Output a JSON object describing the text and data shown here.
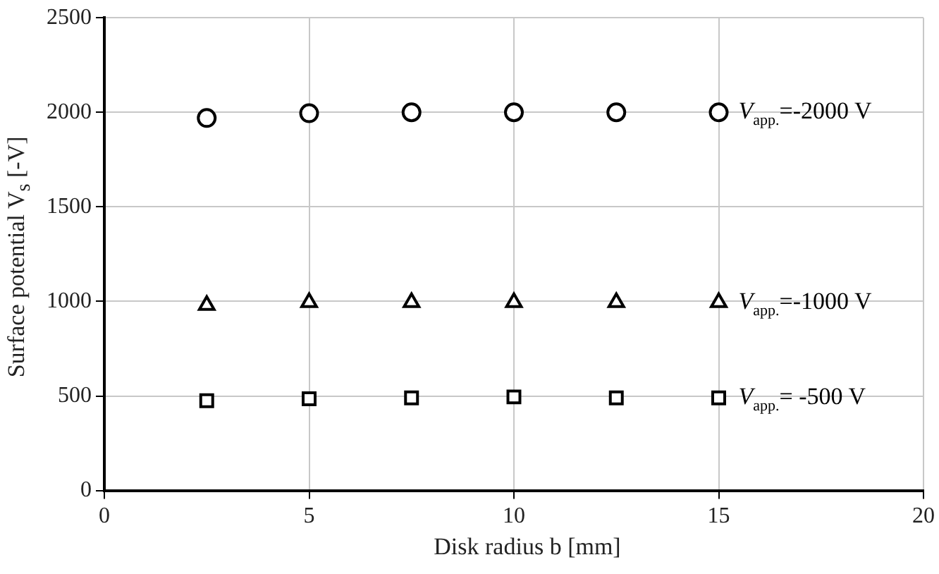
{
  "chart_data": {
    "type": "scatter",
    "xlabel": "Disk radius b [mm]",
    "ylabel": "Surface potential V$_{s}$ [-V]",
    "x": [
      2.5,
      5,
      7.5,
      10,
      12.5,
      15
    ],
    "series": [
      {
        "name": "V$_{app.}$=-2000 V",
        "color": "#000000",
        "marker": "circle",
        "values": [
          1970,
          1995,
          2000,
          2000,
          2000,
          2000
        ]
      },
      {
        "name": "V$_{app.}$=-1000 V",
        "color": "#000000",
        "marker": "triangle",
        "values": [
          980,
          995,
          995,
          995,
          995,
          995
        ]
      },
      {
        "name": "V$_{app.}$= -500 V",
        "color": "#000000",
        "marker": "square",
        "values": [
          475,
          485,
          490,
          495,
          490,
          490
        ]
      }
    ],
    "xlim": [
      0,
      20
    ],
    "xticks": [
      0,
      5,
      10,
      15,
      20
    ],
    "ylim": [
      0,
      2500
    ],
    "yticks": [
      0,
      500,
      1000,
      1500,
      2000,
      2500
    ],
    "grid": true,
    "legend": false
  }
}
